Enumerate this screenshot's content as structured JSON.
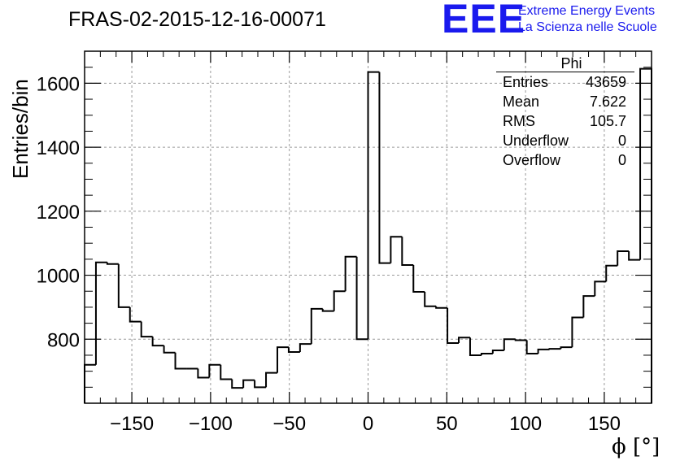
{
  "chart_data": {
    "type": "bar",
    "title": "FRAS-02-2015-12-16-00071",
    "xlabel": "ϕ [°]",
    "ylabel": "Entries/bin",
    "xlim": [
      -180,
      180
    ],
    "ylim": [
      600,
      1700
    ],
    "grid": true,
    "histogram": true,
    "bin_width": 7.2,
    "x_ticks": [
      -150,
      -100,
      -50,
      0,
      50,
      100,
      150
    ],
    "x_tick_labels": [
      "−150",
      "−100",
      "−50",
      "0",
      "50",
      "100",
      "150"
    ],
    "y_ticks": [
      800,
      1000,
      1200,
      1400,
      1600
    ],
    "y_tick_labels": [
      "800",
      "1000",
      "1200",
      "1400",
      "1600"
    ],
    "values": [
      720,
      1040,
      1035,
      900,
      855,
      808,
      780,
      758,
      708,
      708,
      680,
      720,
      675,
      648,
      672,
      650,
      695,
      775,
      760,
      785,
      895,
      888,
      950,
      1058,
      800,
      1635,
      1038,
      1120,
      1032,
      948,
      903,
      898,
      788,
      805,
      750,
      755,
      765,
      800,
      797,
      755,
      768,
      770,
      775,
      868,
      935,
      980,
      1030,
      1075,
      1048,
      1645
    ],
    "stats_box": {
      "name": "Phi",
      "rows": [
        {
          "label": "Entries",
          "value": "43659"
        },
        {
          "label": "Mean",
          "value": "7.622"
        },
        {
          "label": "RMS",
          "value": "105.7"
        },
        {
          "label": "Underflow",
          "value": "0"
        },
        {
          "label": "Overflow",
          "value": "0"
        }
      ]
    },
    "legend": "top-right"
  },
  "branding": {
    "logo": "EEE",
    "line1": "Extreme Energy Events",
    "line2": "La Scienza nelle Scuole",
    "color": "#1a1aee"
  }
}
